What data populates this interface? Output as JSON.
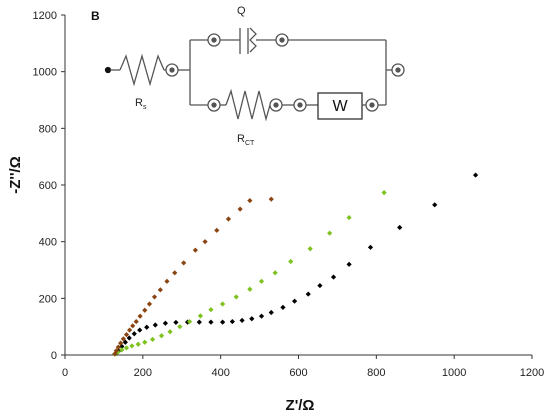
{
  "panel_label": "B",
  "circuit": {
    "rs_label": "R",
    "rs_sub": "s",
    "q_label": "Q",
    "rct_label": "R",
    "rct_sub": "CT",
    "w_label": "W"
  },
  "chart_data": {
    "type": "scatter",
    "title": "",
    "xlabel": "Z'/Ω",
    "ylabel": "-Z''/Ω",
    "xlim": [
      0,
      1200
    ],
    "ylim": [
      0,
      1200
    ],
    "xticks": [
      0,
      200,
      400,
      600,
      800,
      1000,
      1200
    ],
    "yticks": [
      0,
      200,
      400,
      600,
      800,
      1000,
      1200
    ],
    "grid": false,
    "series": [
      {
        "color": "#000000",
        "points": [
          [
            130,
            5
          ],
          [
            138,
            15
          ],
          [
            146,
            30
          ],
          [
            155,
            45
          ],
          [
            165,
            60
          ],
          [
            178,
            75
          ],
          [
            192,
            88
          ],
          [
            210,
            98
          ],
          [
            232,
            106
          ],
          [
            258,
            112
          ],
          [
            285,
            115
          ],
          [
            315,
            116
          ],
          [
            345,
            116
          ],
          [
            375,
            116
          ],
          [
            405,
            116
          ],
          [
            430,
            118
          ],
          [
            455,
            122
          ],
          [
            480,
            128
          ],
          [
            505,
            137
          ],
          [
            530,
            150
          ],
          [
            560,
            168
          ],
          [
            590,
            190
          ],
          [
            625,
            215
          ],
          [
            655,
            245
          ],
          [
            690,
            275
          ],
          [
            730,
            320
          ],
          [
            785,
            380
          ],
          [
            860,
            450
          ],
          [
            950,
            530
          ],
          [
            1055,
            635
          ]
        ]
      },
      {
        "color": "#7dc21e",
        "points": [
          [
            128,
            3
          ],
          [
            136,
            10
          ],
          [
            146,
            18
          ],
          [
            158,
            25
          ],
          [
            172,
            32
          ],
          [
            188,
            38
          ],
          [
            205,
            45
          ],
          [
            225,
            55
          ],
          [
            248,
            68
          ],
          [
            270,
            82
          ],
          [
            295,
            100
          ],
          [
            320,
            118
          ],
          [
            348,
            138
          ],
          [
            375,
            160
          ],
          [
            405,
            180
          ],
          [
            440,
            205
          ],
          [
            475,
            232
          ],
          [
            505,
            260
          ],
          [
            540,
            290
          ],
          [
            580,
            330
          ],
          [
            630,
            375
          ],
          [
            680,
            430
          ],
          [
            730,
            485
          ],
          [
            820,
            573
          ]
        ]
      },
      {
        "color": "#8b4513",
        "points": [
          [
            128,
            4
          ],
          [
            132,
            15
          ],
          [
            137,
            28
          ],
          [
            143,
            42
          ],
          [
            150,
            57
          ],
          [
            158,
            72
          ],
          [
            166,
            88
          ],
          [
            174,
            103
          ],
          [
            183,
            118
          ],
          [
            193,
            137
          ],
          [
            205,
            158
          ],
          [
            217,
            180
          ],
          [
            230,
            205
          ],
          [
            245,
            230
          ],
          [
            262,
            260
          ],
          [
            282,
            290
          ],
          [
            305,
            325
          ],
          [
            335,
            370
          ],
          [
            360,
            400
          ],
          [
            390,
            440
          ],
          [
            420,
            480
          ],
          [
            450,
            515
          ],
          [
            475,
            545
          ],
          [
            530,
            550
          ]
        ]
      }
    ]
  }
}
